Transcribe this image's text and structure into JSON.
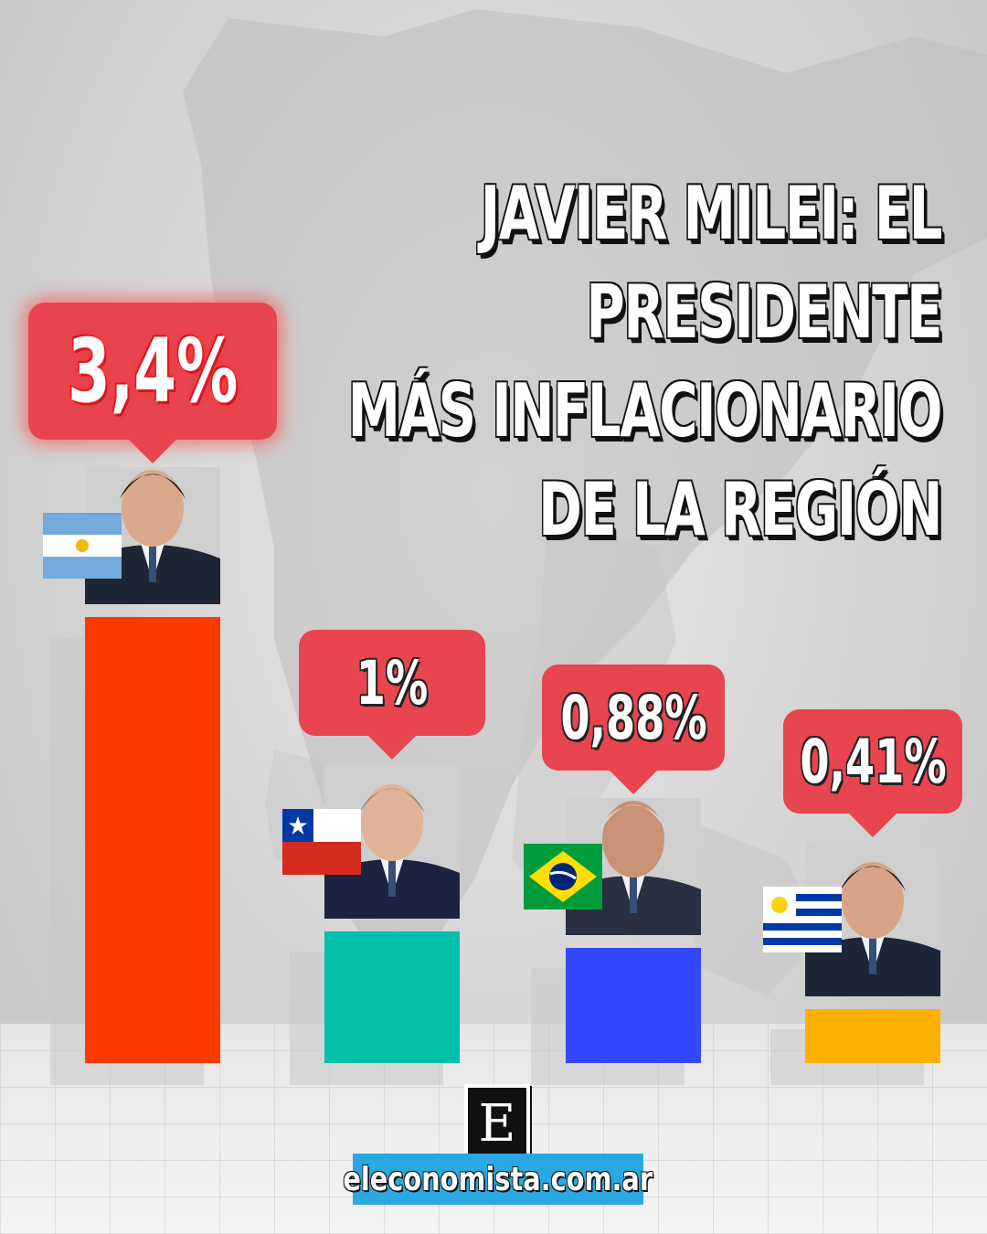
{
  "headline": {
    "lines": [
      "JAVIER MILEI: EL PRESIDENTE",
      "MÁS INFLACIONARIO",
      "DE LA REGIÓN"
    ]
  },
  "chart_data": {
    "type": "bar",
    "title": "JAVIER MILEI: EL PRESIDENTE MÁS INFLACIONARIO DE LA REGIÓN",
    "categories": [
      "Argentina",
      "Chile",
      "Brasil",
      "Uruguay"
    ],
    "values": [
      3.4,
      1,
      0.88,
      0.41
    ],
    "labels": [
      "3,4%",
      "1%",
      "0,88%",
      "0,41%"
    ],
    "bar_colors": [
      "#ff3a00",
      "#00bfab",
      "#3349ff",
      "#ffb000"
    ],
    "ylim": [
      0,
      3.4
    ],
    "grid": false,
    "legend": "none"
  },
  "flags": [
    "argentina-flag-icon",
    "chile-flag-icon",
    "brazil-flag-icon",
    "uruguay-flag-icon"
  ],
  "brand": {
    "logo_letter": "E",
    "url": "eleconomista.com.ar"
  },
  "colors": {
    "bubble": "#e8454f",
    "url_box": "#2aa8e0"
  }
}
